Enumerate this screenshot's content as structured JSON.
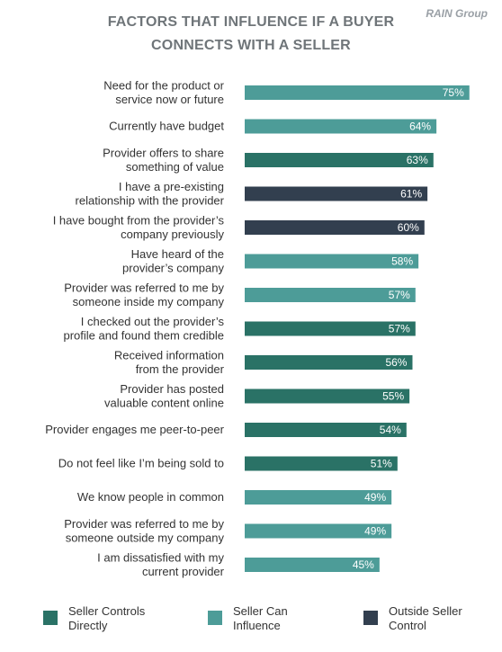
{
  "brand": "RAIN Group",
  "header": {
    "title_line1": "FACTORS THAT INFLUENCE IF A BUYER",
    "title_line2": "CONNECTS WITH A SELLER"
  },
  "colors": {
    "seller_controls": "#2a7266",
    "seller_influence": "#4d9c98",
    "outside_control": "#323f4f"
  },
  "legend": [
    {
      "label": "Seller Controls\nDirectly",
      "color": "#2a7266"
    },
    {
      "label": "Seller Can\nInfluence",
      "color": "#4d9c98"
    },
    {
      "label": "Outside Seller\nControl",
      "color": "#323f4f"
    }
  ],
  "chart_data": {
    "type": "bar",
    "orientation": "horizontal",
    "title": "FACTORS THAT INFLUENCE IF A BUYER CONNECTS WITH A SELLER",
    "xlabel": "",
    "ylabel": "",
    "grid": false,
    "legend_position": "bottom",
    "categories": [
      [
        "Need for the product or",
        "service now or future"
      ],
      [
        "Currently have budget"
      ],
      [
        "Provider offers to share",
        "something of value"
      ],
      [
        "I have a pre-existing",
        "relationship with the provider"
      ],
      [
        "I have bought from the provider’s",
        "company previously"
      ],
      [
        "Have heard of the",
        "provider’s company"
      ],
      [
        "Provider was referred to me by",
        "someone inside my company"
      ],
      [
        "I checked out the provider’s",
        "profile and found them credible"
      ],
      [
        "Received information",
        "from the provider"
      ],
      [
        "Provider has posted",
        "valuable content online"
      ],
      [
        "Provider engages me peer-to-peer"
      ],
      [
        "Do not feel like I’m being sold to"
      ],
      [
        "We know people in common"
      ],
      [
        "Provider was referred to me by",
        "someone outside my company"
      ],
      [
        "I am dissatisfied with my",
        "current provider"
      ]
    ],
    "values": [
      75,
      64,
      63,
      61,
      60,
      58,
      57,
      57,
      56,
      55,
      54,
      51,
      49,
      49,
      45
    ],
    "value_labels": [
      "75%",
      "64%",
      "63%",
      "61%",
      "60%",
      "58%",
      "57%",
      "57%",
      "56%",
      "55%",
      "54%",
      "51%",
      "49%",
      "49%",
      "45%"
    ],
    "groups": [
      "Seller Can Influence",
      "Seller Can Influence",
      "Seller Controls Directly",
      "Outside Seller Control",
      "Outside Seller Control",
      "Seller Can Influence",
      "Seller Can Influence",
      "Seller Controls Directly",
      "Seller Controls Directly",
      "Seller Controls Directly",
      "Seller Controls Directly",
      "Seller Controls Directly",
      "Seller Can Influence",
      "Seller Can Influence",
      "Seller Can Influence"
    ],
    "xlim": [
      0,
      100
    ]
  }
}
